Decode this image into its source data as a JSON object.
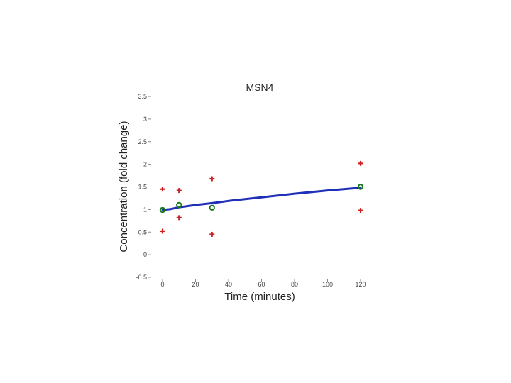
{
  "chart_data": {
    "type": "scatter",
    "title": "MSN4",
    "xlabel": "Time (minutes)",
    "ylabel": "Concentration (fold change)",
    "xlim": [
      0,
      120
    ],
    "ylim": [
      -0.5,
      3.5
    ],
    "xticks": [
      0,
      20,
      40,
      60,
      80,
      100,
      120
    ],
    "xtick_labels": [
      "0",
      "20",
      "40",
      "60",
      "80",
      "100",
      "120"
    ],
    "yticks": [
      -0.5,
      0,
      0.5,
      1,
      1.5,
      2,
      2.5,
      3,
      3.5
    ],
    "ytick_labels": [
      "-0.5",
      "0",
      "0.5",
      "1",
      "1.5",
      "2",
      "2.5",
      "3",
      "3.5"
    ],
    "grid": false,
    "series": [
      {
        "marker": "plus",
        "color": "#cc2222",
        "points": [
          {
            "x": 0,
            "y": 1.45
          },
          {
            "x": 0,
            "y": 0.52
          },
          {
            "x": 10,
            "y": 1.42
          },
          {
            "x": 10,
            "y": 0.82
          },
          {
            "x": 30,
            "y": 1.68
          },
          {
            "x": 30,
            "y": 0.45
          },
          {
            "x": 120,
            "y": 2.02
          },
          {
            "x": 120,
            "y": 0.98
          }
        ]
      },
      {
        "marker": "circle",
        "color": "#1a7a1a",
        "points": [
          {
            "x": 0,
            "y": 0.99
          },
          {
            "x": 10,
            "y": 1.1
          },
          {
            "x": 30,
            "y": 1.04
          },
          {
            "x": 120,
            "y": 1.5
          }
        ]
      },
      {
        "marker": "line",
        "color": "#1f2fb8",
        "points": [
          {
            "x": 0,
            "y": 0.99
          },
          {
            "x": 5,
            "y": 1.01
          },
          {
            "x": 10,
            "y": 1.05
          },
          {
            "x": 20,
            "y": 1.1
          },
          {
            "x": 30,
            "y": 1.14
          },
          {
            "x": 40,
            "y": 1.19
          },
          {
            "x": 60,
            "y": 1.27
          },
          {
            "x": 80,
            "y": 1.35
          },
          {
            "x": 100,
            "y": 1.42
          },
          {
            "x": 120,
            "y": 1.48
          }
        ]
      }
    ]
  }
}
